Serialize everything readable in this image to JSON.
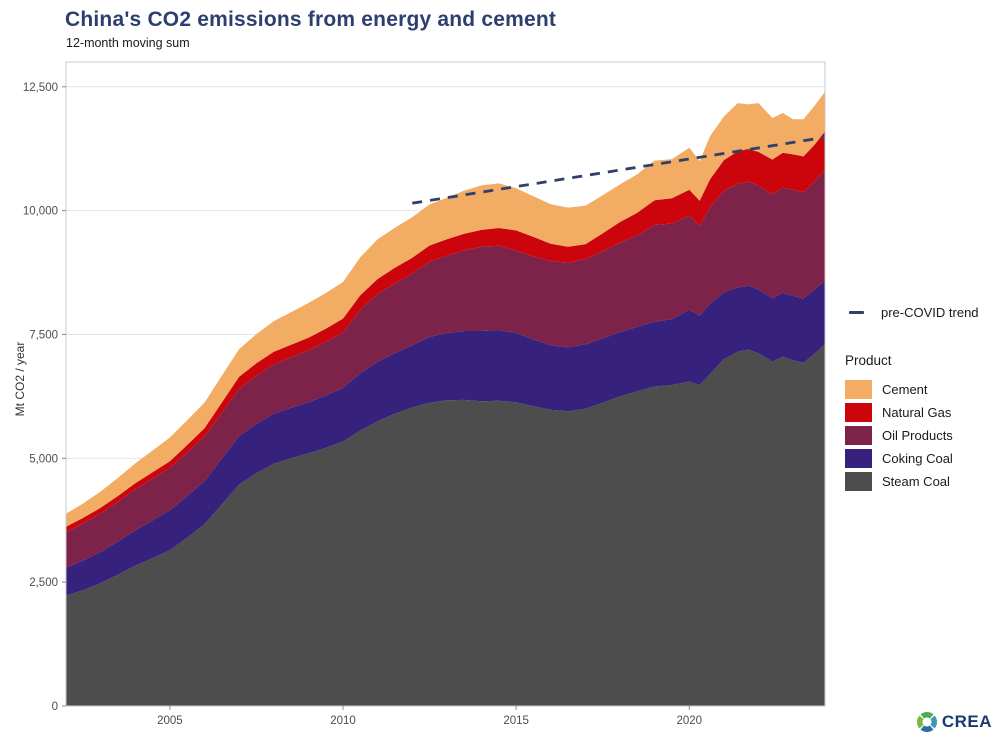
{
  "header": {
    "title": "China's CO2 emissions from energy and cement",
    "subtitle": "12-month moving sum"
  },
  "legend": {
    "trend_label": "pre-COVID trend",
    "trend_color": "#31406b",
    "group_title": "Product",
    "items": [
      {
        "label": "Cement",
        "color": "#f2ac63"
      },
      {
        "label": "Natural Gas",
        "color": "#cc050d"
      },
      {
        "label": "Oil Products",
        "color": "#7d2248"
      },
      {
        "label": "Coking Coal",
        "color": "#36217c"
      },
      {
        "label": "Steam Coal",
        "color": "#4d4d4d"
      }
    ]
  },
  "branding": {
    "logo_text": "CREA"
  },
  "chart_data": {
    "type": "area",
    "stacked": true,
    "title": "China's CO2 emissions from energy and cement",
    "subtitle": "12-month moving sum",
    "xlabel": "",
    "ylabel": "Mt CO2 / year",
    "xlim": [
      2002,
      2023.92
    ],
    "ylim": [
      0,
      13000
    ],
    "x_ticks": [
      2005,
      2010,
      2015,
      2020
    ],
    "y_ticks": [
      0,
      2500,
      5000,
      7500,
      10000,
      12500
    ],
    "grid": true,
    "legend_position": "right",
    "x": [
      2002.0,
      2002.5,
      2003.0,
      2003.5,
      2004.0,
      2004.5,
      2005.0,
      2005.5,
      2006.0,
      2006.5,
      2007.0,
      2007.5,
      2008.0,
      2008.5,
      2009.0,
      2009.5,
      2010.0,
      2010.5,
      2011.0,
      2011.5,
      2012.0,
      2012.5,
      2013.0,
      2013.5,
      2014.0,
      2014.5,
      2015.0,
      2015.5,
      2016.0,
      2016.5,
      2017.0,
      2017.5,
      2018.0,
      2018.5,
      2019.0,
      2019.5,
      2020.0,
      2020.3,
      2020.6,
      2021.0,
      2021.4,
      2021.7,
      2022.0,
      2022.4,
      2022.7,
      2023.0,
      2023.3,
      2023.6,
      2023.92
    ],
    "series": [
      {
        "name": "Steam Coal",
        "color": "#4d4d4d",
        "values": [
          2230,
          2340,
          2480,
          2650,
          2830,
          2985,
          3140,
          3400,
          3670,
          4070,
          4470,
          4700,
          4890,
          5000,
          5100,
          5210,
          5340,
          5560,
          5750,
          5900,
          6030,
          6120,
          6170,
          6180,
          6150,
          6160,
          6130,
          6050,
          5980,
          5950,
          6000,
          6120,
          6250,
          6350,
          6450,
          6480,
          6550,
          6480,
          6700,
          7000,
          7150,
          7195,
          7120,
          6950,
          7050,
          6980,
          6925,
          7100,
          7300
        ]
      },
      {
        "name": "Coking Coal",
        "color": "#36217c",
        "values": [
          560,
          600,
          630,
          672,
          715,
          762,
          810,
          840,
          870,
          925,
          980,
          995,
          1010,
          1020,
          1030,
          1055,
          1080,
          1160,
          1200,
          1225,
          1250,
          1330,
          1360,
          1390,
          1420,
          1430,
          1400,
          1350,
          1300,
          1290,
          1300,
          1300,
          1300,
          1305,
          1310,
          1330,
          1450,
          1400,
          1420,
          1350,
          1300,
          1290,
          1285,
          1280,
          1290,
          1300,
          1300,
          1295,
          1290
        ]
      },
      {
        "name": "Oil Products",
        "color": "#7d2248",
        "values": [
          720,
          750,
          775,
          800,
          830,
          845,
          860,
          880,
          900,
          925,
          950,
          975,
          1000,
          1020,
          1050,
          1085,
          1120,
          1280,
          1370,
          1410,
          1450,
          1520,
          1560,
          1630,
          1700,
          1700,
          1660,
          1680,
          1700,
          1710,
          1720,
          1760,
          1800,
          1850,
          1950,
          1930,
          1900,
          1820,
          1950,
          2050,
          2090,
          2100,
          2100,
          2100,
          2120,
          2140,
          2150,
          2180,
          2230
        ]
      },
      {
        "name": "Natural Gas",
        "color": "#cc050d",
        "values": [
          110,
          112,
          115,
          118,
          122,
          126,
          130,
          148,
          165,
          205,
          245,
          248,
          250,
          252,
          255,
          265,
          280,
          290,
          300,
          310,
          320,
          325,
          330,
          335,
          340,
          360,
          410,
          390,
          350,
          320,
          300,
          360,
          420,
          450,
          500,
          510,
          520,
          500,
          560,
          620,
          655,
          660,
          680,
          700,
          710,
          715,
          720,
          740,
          780
        ]
      },
      {
        "name": "Cement",
        "color": "#f2ac63",
        "values": [
          260,
          288,
          330,
          365,
          400,
          440,
          480,
          500,
          520,
          540,
          560,
          590,
          620,
          660,
          700,
          720,
          740,
          770,
          800,
          810,
          820,
          830,
          840,
          870,
          900,
          900,
          850,
          820,
          800,
          790,
          780,
          770,
          760,
          780,
          800,
          790,
          850,
          800,
          870,
          880,
          975,
          900,
          985,
          840,
          800,
          710,
          750,
          785,
          800
        ]
      }
    ],
    "trend": {
      "label": "pre-COVID trend",
      "style": "dashed",
      "color": "#31406b",
      "x": [
        2012.0,
        2023.92
      ],
      "y": [
        10150,
        11480
      ]
    }
  }
}
